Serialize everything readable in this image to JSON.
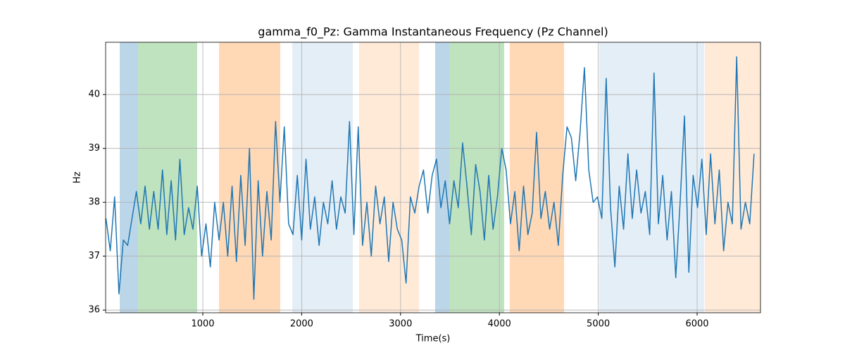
{
  "chart_data": {
    "type": "line",
    "title": "gamma_f0_Pz: Gamma Instantaneous Frequency (Pz Channel)",
    "x_label": "Time(s)",
    "y_label": "Hz",
    "xlim": [
      17,
      6641
    ],
    "ylim": [
      35.95,
      40.97
    ],
    "xticks": [
      1000,
      2000,
      3000,
      4000,
      5000,
      6000
    ],
    "yticks": [
      36,
      37,
      38,
      39,
      40
    ],
    "grid": true,
    "spans": [
      {
        "x0": 160,
        "x1": 345,
        "color": "#1f77b4",
        "alpha": 0.3
      },
      {
        "x0": 345,
        "x1": 943,
        "color": "#2ca02c",
        "alpha": 0.3
      },
      {
        "x0": 1164,
        "x1": 1783,
        "color": "#ff7f0e",
        "alpha": 0.3
      },
      {
        "x0": 1905,
        "x1": 2517,
        "color": "#1f77b4",
        "alpha": 0.12
      },
      {
        "x0": 2581,
        "x1": 3187,
        "color": "#ff7f0e",
        "alpha": 0.16
      },
      {
        "x0": 3350,
        "x1": 3493,
        "color": "#1f77b4",
        "alpha": 0.3
      },
      {
        "x0": 3493,
        "x1": 4048,
        "color": "#2ca02c",
        "alpha": 0.3
      },
      {
        "x0": 4105,
        "x1": 4654,
        "color": "#ff7f0e",
        "alpha": 0.3
      },
      {
        "x0": 5010,
        "x1": 6071,
        "color": "#1f77b4",
        "alpha": 0.12
      },
      {
        "x0": 6078,
        "x1": 6641,
        "color": "#ff7f0e",
        "alpha": 0.16
      }
    ],
    "x": [
      20,
      64,
      108,
      152,
      196,
      240,
      284,
      328,
      372,
      416,
      460,
      504,
      548,
      592,
      636,
      680,
      724,
      768,
      812,
      856,
      900,
      944,
      988,
      1032,
      1076,
      1120,
      1164,
      1208,
      1252,
      1296,
      1340,
      1384,
      1428,
      1472,
      1516,
      1560,
      1604,
      1648,
      1692,
      1736,
      1780,
      1824,
      1868,
      1912,
      1956,
      2000,
      2044,
      2088,
      2132,
      2176,
      2220,
      2264,
      2308,
      2352,
      2396,
      2440,
      2484,
      2528,
      2572,
      2616,
      2660,
      2704,
      2748,
      2792,
      2836,
      2880,
      2924,
      2968,
      3012,
      3056,
      3100,
      3144,
      3188,
      3232,
      3276,
      3320,
      3364,
      3408,
      3452,
      3496,
      3540,
      3584,
      3628,
      3672,
      3716,
      3760,
      3804,
      3848,
      3892,
      3936,
      3980,
      4024,
      4068,
      4112,
      4156,
      4200,
      4244,
      4288,
      4332,
      4376,
      4420,
      4464,
      4508,
      4552,
      4596,
      4640,
      4684,
      4728,
      4772,
      4816,
      4860,
      4904,
      4948,
      4992,
      5036,
      5080,
      5124,
      5168,
      5212,
      5256,
      5300,
      5344,
      5388,
      5432,
      5476,
      5520,
      5564,
      5608,
      5652,
      5696,
      5740,
      5784,
      5828,
      5872,
      5916,
      5960,
      6004,
      6048,
      6092,
      6136,
      6180,
      6224,
      6268,
      6312,
      6356,
      6400,
      6444,
      6488,
      6532,
      6576
    ],
    "series": [
      {
        "color": "#1f77b4",
        "values": [
          37.7,
          37.1,
          38.1,
          36.3,
          37.3,
          37.2,
          37.7,
          38.2,
          37.6,
          38.3,
          37.5,
          38.2,
          37.5,
          38.6,
          37.4,
          38.4,
          37.3,
          38.8,
          37.4,
          37.9,
          37.5,
          38.3,
          37.0,
          37.6,
          36.8,
          38.0,
          37.3,
          38.0,
          37.0,
          38.3,
          36.9,
          38.5,
          37.2,
          39.0,
          36.2,
          38.4,
          37.0,
          38.2,
          37.3,
          39.5,
          38.0,
          39.4,
          37.6,
          37.4,
          38.5,
          37.3,
          38.8,
          37.5,
          38.1,
          37.2,
          38.0,
          37.6,
          38.4,
          37.5,
          38.1,
          37.8,
          39.5,
          37.4,
          39.4,
          37.2,
          38.0,
          37.0,
          38.3,
          37.6,
          38.1,
          36.9,
          38.0,
          37.5,
          37.3,
          36.5,
          38.1,
          37.8,
          38.3,
          38.6,
          37.8,
          38.5,
          38.8,
          37.9,
          38.4,
          37.6,
          38.4,
          37.9,
          39.1,
          38.3,
          37.4,
          38.7,
          38.2,
          37.3,
          38.5,
          37.5,
          38.1,
          39.0,
          38.6,
          37.6,
          38.2,
          37.1,
          38.3,
          37.4,
          37.8,
          39.3,
          37.7,
          38.2,
          37.5,
          38.0,
          37.2,
          38.5,
          39.4,
          39.2,
          38.4,
          39.3,
          40.5,
          38.6,
          38.0,
          38.1,
          37.7,
          40.3,
          37.9,
          36.8,
          38.3,
          37.5,
          38.9,
          37.7,
          38.6,
          37.8,
          38.2,
          37.4,
          40.4,
          37.6,
          38.5,
          37.3,
          38.2,
          36.6,
          38.0,
          39.6,
          36.7,
          38.5,
          37.9,
          38.8,
          37.4,
          38.9,
          37.6,
          38.6,
          37.1,
          38.0,
          37.6,
          40.7,
          37.5,
          38.0,
          37.6,
          38.9
        ]
      }
    ]
  }
}
